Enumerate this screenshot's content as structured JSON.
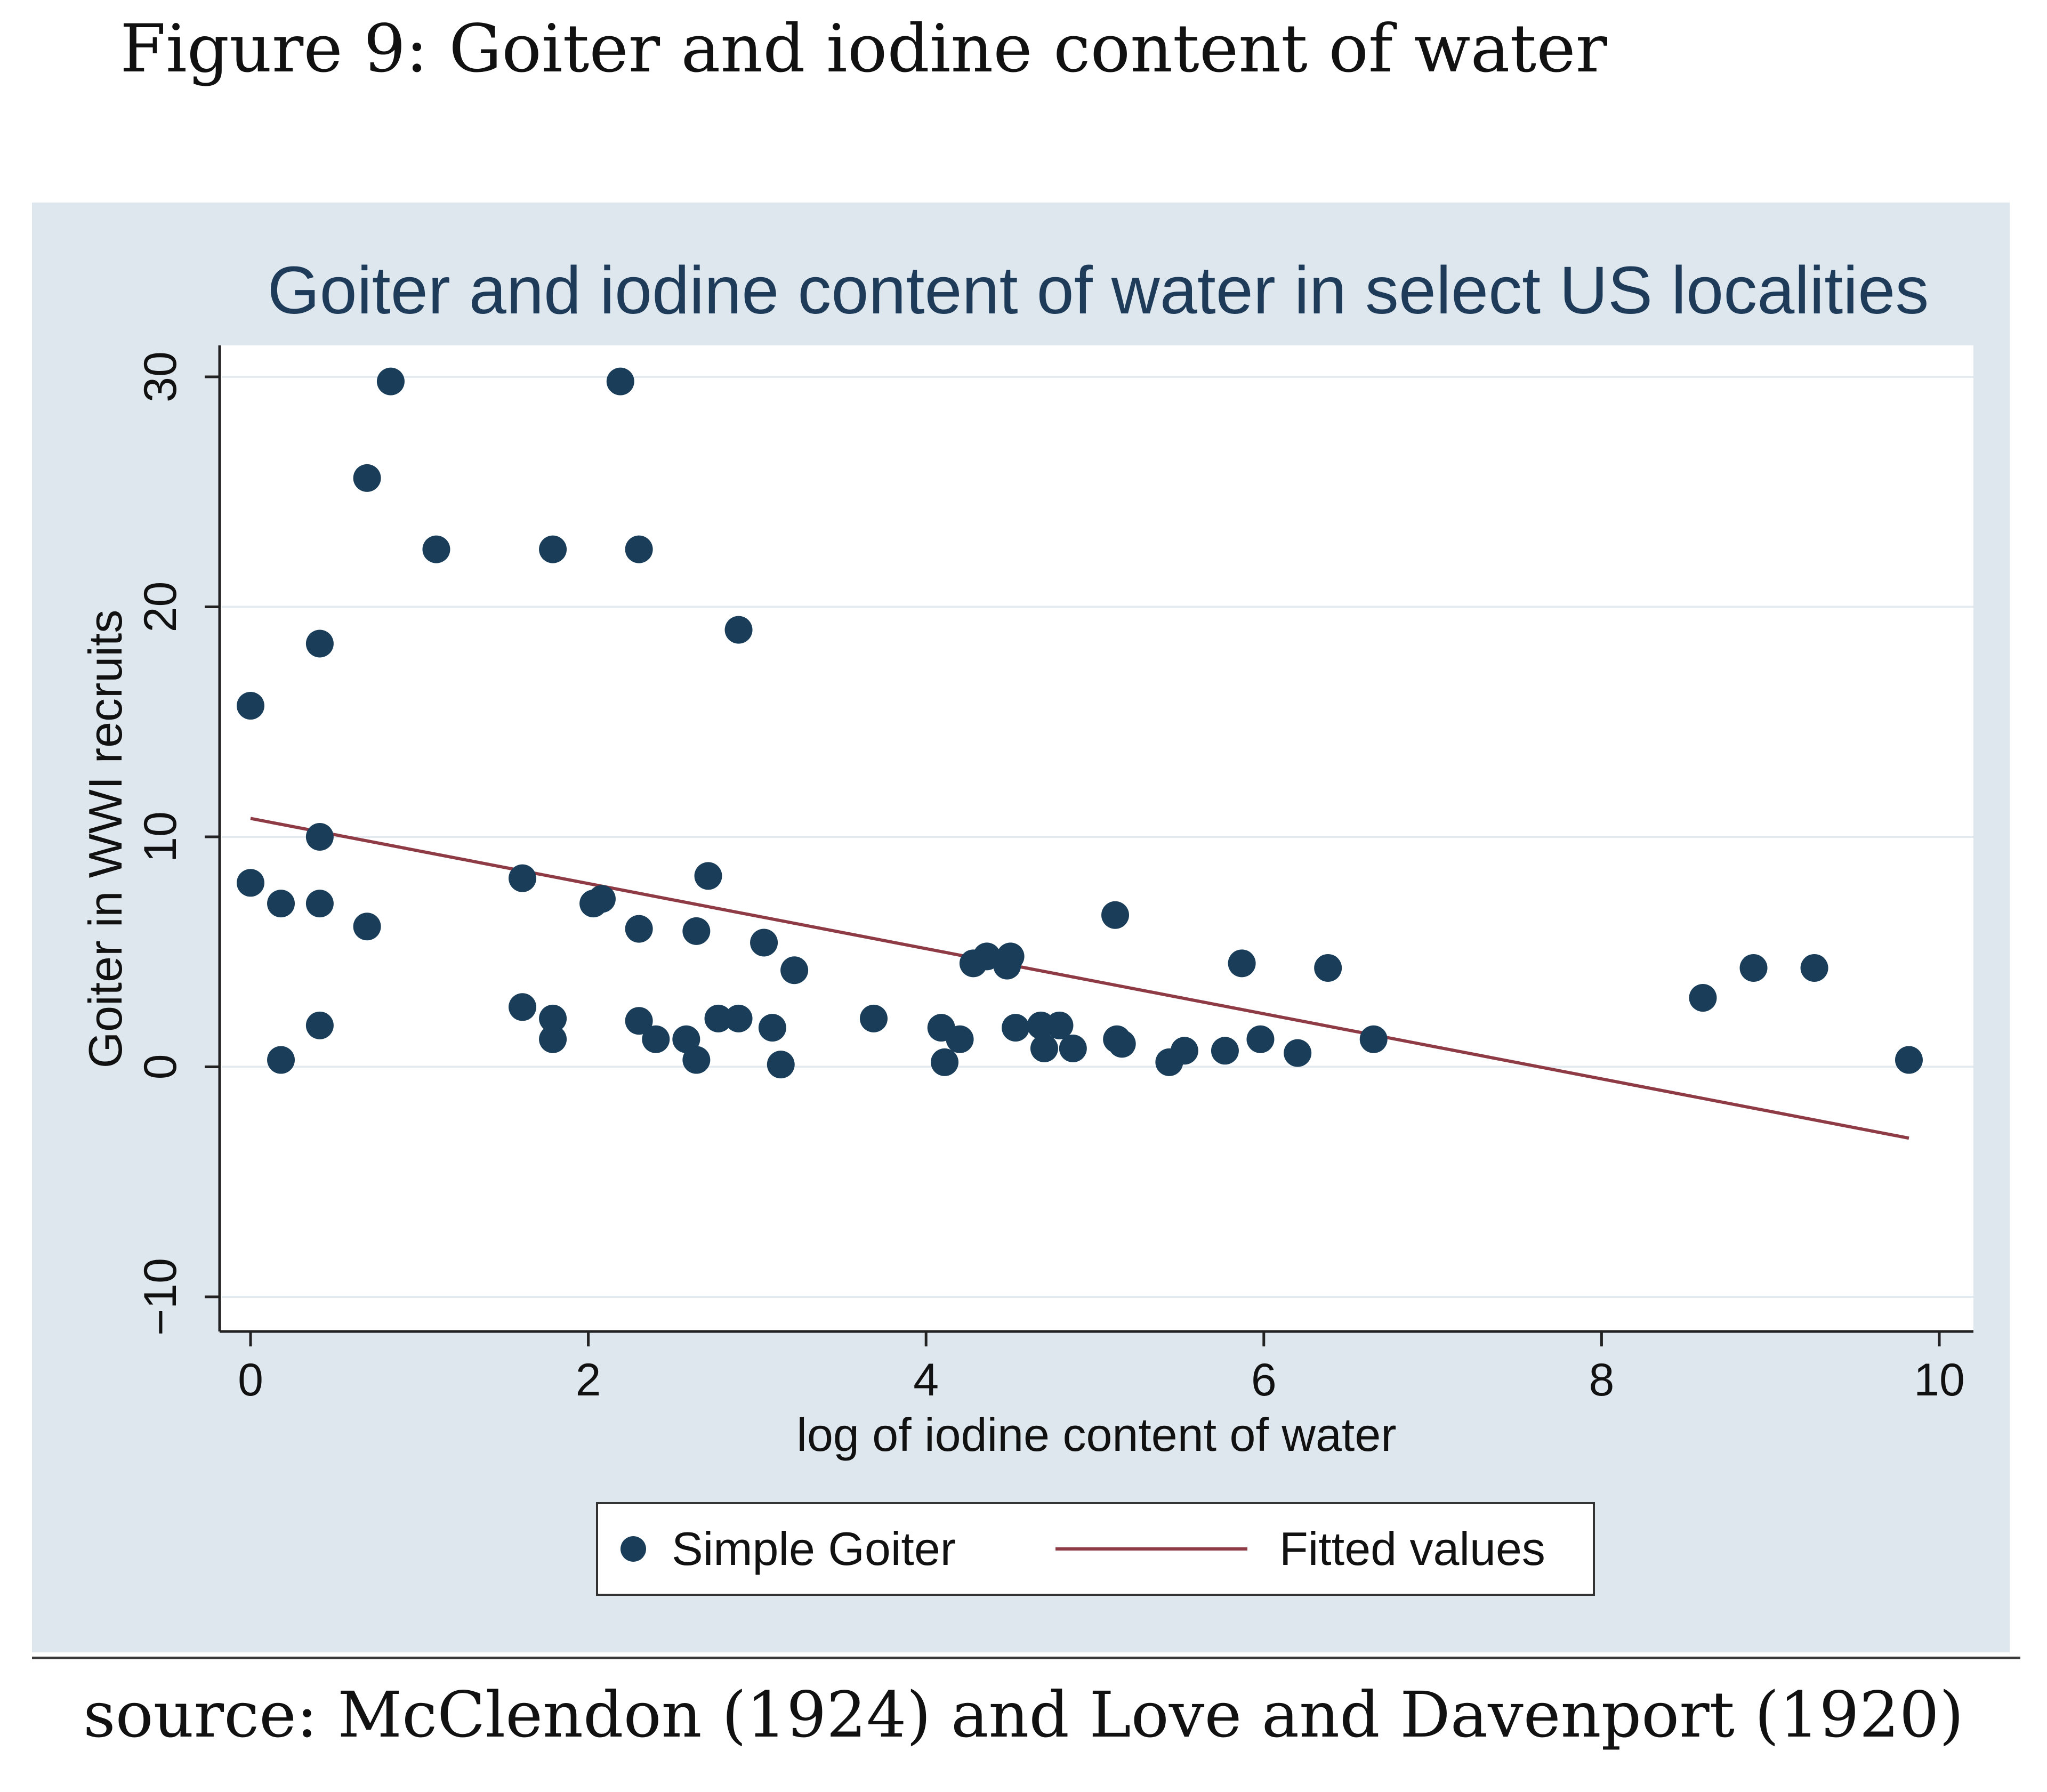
{
  "figure": {
    "caption": "Figure 9: Goiter and iodine content of water",
    "source": "source: McClendon (1924) and Love and Davenport (1920)"
  },
  "chart_data": {
    "type": "scatter",
    "title": "Goiter and iodine content of water in select US localities",
    "xlabel": "log of iodine content of water",
    "ylabel": "Goiter in WWI recruits",
    "xlim": [
      0,
      10
    ],
    "ylim": [
      -10,
      30
    ],
    "xticks": [
      "0",
      "2",
      "4",
      "6",
      "8",
      "10"
    ],
    "yticks": [
      "30",
      "20",
      "10",
      "0",
      "−10"
    ],
    "grid": true,
    "legend_position": "bottom-center",
    "colors": {
      "panel_background": "#dde7ed",
      "plot_background": "#ffffff",
      "gridline": "#e4ebf0",
      "marker": "#1a3e5a",
      "fitted_line": "#8f3b45",
      "title": "#1f3b5a",
      "axis_text": "#111111"
    },
    "series": [
      {
        "name": "Simple Goiter",
        "kind": "scatter",
        "points": [
          [
            0.83,
            29.8
          ],
          [
            2.19,
            29.8
          ],
          [
            0.69,
            25.6
          ],
          [
            1.1,
            22.5
          ],
          [
            1.79,
            22.5
          ],
          [
            2.3,
            22.5
          ],
          [
            0.41,
            18.4
          ],
          [
            2.89,
            19.0
          ],
          [
            0.0,
            15.7
          ],
          [
            0.41,
            10.0
          ],
          [
            0.0,
            8.0
          ],
          [
            0.18,
            7.1
          ],
          [
            0.41,
            7.1
          ],
          [
            0.69,
            6.1
          ],
          [
            1.61,
            8.2
          ],
          [
            2.03,
            7.1
          ],
          [
            2.08,
            7.3
          ],
          [
            2.3,
            6.0
          ],
          [
            2.64,
            5.9
          ],
          [
            2.71,
            8.3
          ],
          [
            3.04,
            5.4
          ],
          [
            3.22,
            4.2
          ],
          [
            0.18,
            0.3
          ],
          [
            0.41,
            1.8
          ],
          [
            1.61,
            2.6
          ],
          [
            1.79,
            2.1
          ],
          [
            1.79,
            1.2
          ],
          [
            2.3,
            2.0
          ],
          [
            2.4,
            1.2
          ],
          [
            2.58,
            1.2
          ],
          [
            2.64,
            0.3
          ],
          [
            2.77,
            2.1
          ],
          [
            2.89,
            2.1
          ],
          [
            3.09,
            1.7
          ],
          [
            3.14,
            0.1
          ],
          [
            3.69,
            2.1
          ],
          [
            4.09,
            1.7
          ],
          [
            4.11,
            0.2
          ],
          [
            4.2,
            1.2
          ],
          [
            4.28,
            4.5
          ],
          [
            4.36,
            4.8
          ],
          [
            4.48,
            4.4
          ],
          [
            4.5,
            4.8
          ],
          [
            4.53,
            1.7
          ],
          [
            4.68,
            1.8
          ],
          [
            4.7,
            0.8
          ],
          [
            4.79,
            1.8
          ],
          [
            4.87,
            0.8
          ],
          [
            5.12,
            6.6
          ],
          [
            5.13,
            1.2
          ],
          [
            5.16,
            1.0
          ],
          [
            5.44,
            0.2
          ],
          [
            5.53,
            0.7
          ],
          [
            5.77,
            0.7
          ],
          [
            5.87,
            4.5
          ],
          [
            5.98,
            1.2
          ],
          [
            6.2,
            0.6
          ],
          [
            6.38,
            4.3
          ],
          [
            6.65,
            1.2
          ],
          [
            8.6,
            3.0
          ],
          [
            8.9,
            4.3
          ],
          [
            9.26,
            4.3
          ],
          [
            9.82,
            0.3
          ]
        ]
      },
      {
        "name": "Fitted values",
        "kind": "line",
        "points": [
          [
            0.0,
            10.8
          ],
          [
            9.82,
            -3.1
          ]
        ]
      }
    ]
  }
}
